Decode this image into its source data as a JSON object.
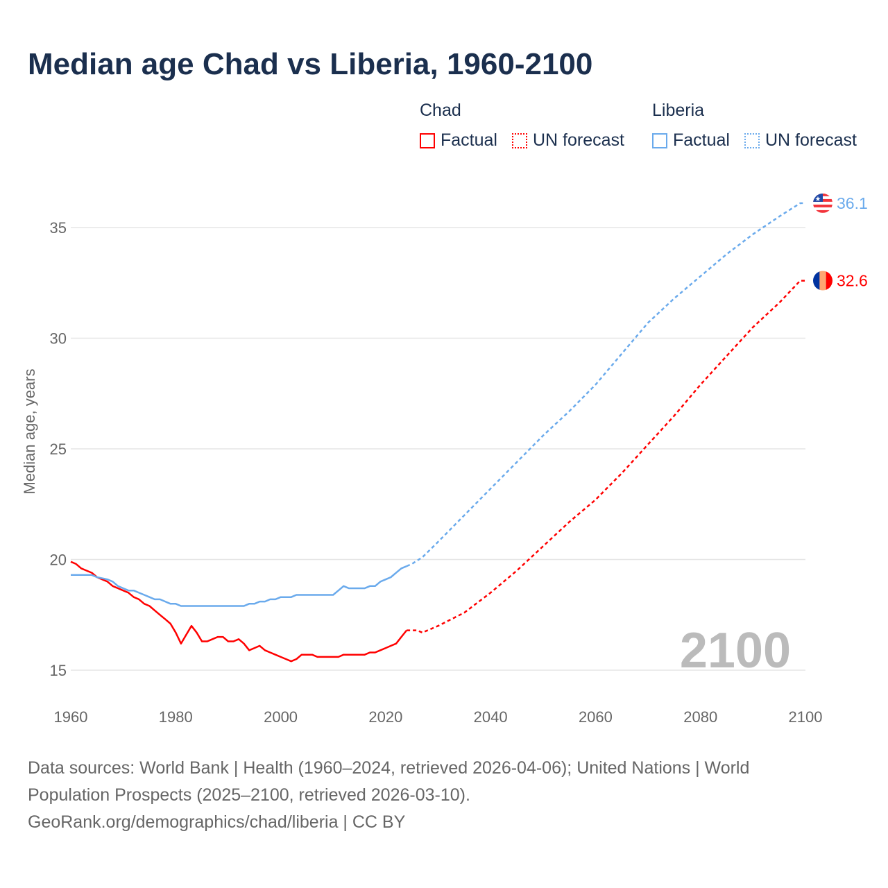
{
  "title": "Median age Chad vs Liberia, 1960-2100",
  "legend": {
    "groups": [
      {
        "name": "Chad",
        "factual": "Factual",
        "forecast": "UN forecast"
      },
      {
        "name": "Liberia",
        "factual": "Factual",
        "forecast": "UN forecast"
      }
    ]
  },
  "source": {
    "line1": "Data sources: World Bank | Health (1960–2024, retrieved 2026-04-06); United Nations | World Population Prospects (2025–2100, retrieved 2026-03-10).",
    "line2": "GeoRank.org/demographics/chad/liberia | CC BY"
  },
  "chart_data": {
    "type": "line",
    "title": "Median age Chad vs Liberia, 1960-2100",
    "xlabel": "",
    "ylabel": "Median age, years",
    "xlim": [
      1960,
      2100
    ],
    "ylim": [
      15,
      36.5
    ],
    "xticks": [
      1960,
      1980,
      2000,
      2020,
      2040,
      2060,
      2080,
      2100
    ],
    "yticks": [
      15,
      20,
      25,
      30,
      35
    ],
    "year_label": "2100",
    "grid": true,
    "series": [
      {
        "name": "Chad",
        "color": "#ff0000",
        "end_label": "32.6",
        "factual": {
          "x": [
            1960,
            1961,
            1962,
            1963,
            1964,
            1965,
            1966,
            1967,
            1968,
            1969,
            1970,
            1971,
            1972,
            1973,
            1974,
            1975,
            1976,
            1977,
            1978,
            1979,
            1980,
            1981,
            1982,
            1983,
            1984,
            1985,
            1986,
            1987,
            1988,
            1989,
            1990,
            1991,
            1992,
            1993,
            1994,
            1995,
            1996,
            1997,
            1998,
            1999,
            2000,
            2001,
            2002,
            2003,
            2004,
            2005,
            2006,
            2007,
            2008,
            2009,
            2010,
            2011,
            2012,
            2013,
            2014,
            2015,
            2016,
            2017,
            2018,
            2019,
            2020,
            2021,
            2022,
            2023,
            2024
          ],
          "y": [
            19.9,
            19.8,
            19.6,
            19.5,
            19.4,
            19.2,
            19.1,
            19.0,
            18.8,
            18.7,
            18.6,
            18.5,
            18.3,
            18.2,
            18.0,
            17.9,
            17.7,
            17.5,
            17.3,
            17.1,
            16.7,
            16.2,
            16.6,
            17.0,
            16.7,
            16.3,
            16.3,
            16.4,
            16.5,
            16.5,
            16.3,
            16.3,
            16.4,
            16.2,
            15.9,
            16.0,
            16.1,
            15.9,
            15.8,
            15.7,
            15.6,
            15.5,
            15.4,
            15.5,
            15.7,
            15.7,
            15.7,
            15.6,
            15.6,
            15.6,
            15.6,
            15.6,
            15.7,
            15.7,
            15.7,
            15.7,
            15.7,
            15.8,
            15.8,
            15.9,
            16.0,
            16.1,
            16.2,
            16.5,
            16.8
          ]
        },
        "forecast": {
          "x": [
            2024,
            2025,
            2026,
            2027,
            2030,
            2035,
            2040,
            2045,
            2050,
            2055,
            2060,
            2065,
            2070,
            2075,
            2080,
            2085,
            2090,
            2095,
            2099,
            2100
          ],
          "y": [
            16.8,
            16.8,
            16.8,
            16.7,
            17.0,
            17.6,
            18.5,
            19.5,
            20.6,
            21.7,
            22.7,
            23.9,
            25.2,
            26.5,
            27.9,
            29.2,
            30.5,
            31.6,
            32.6,
            32.6
          ]
        }
      },
      {
        "name": "Liberia",
        "color": "#6aaaec",
        "end_label": "36.1",
        "factual": {
          "x": [
            1960,
            1964,
            1965,
            1967,
            1968,
            1969,
            1970,
            1971,
            1972,
            1973,
            1974,
            1975,
            1976,
            1977,
            1978,
            1979,
            1980,
            1981,
            1993,
            1994,
            1995,
            1996,
            1997,
            1998,
            1999,
            2000,
            2002,
            2003,
            2010,
            2011,
            2012,
            2013,
            2016,
            2017,
            2018,
            2019,
            2020,
            2021,
            2022,
            2023,
            2024
          ],
          "y": [
            19.3,
            19.3,
            19.2,
            19.1,
            19.0,
            18.8,
            18.7,
            18.6,
            18.6,
            18.5,
            18.4,
            18.3,
            18.2,
            18.2,
            18.1,
            18.0,
            18.0,
            17.9,
            17.9,
            18.0,
            18.0,
            18.1,
            18.1,
            18.2,
            18.2,
            18.3,
            18.3,
            18.4,
            18.4,
            18.6,
            18.8,
            18.7,
            18.7,
            18.8,
            18.8,
            19.0,
            19.1,
            19.2,
            19.4,
            19.6,
            19.7
          ]
        },
        "forecast": {
          "x": [
            2024,
            2025,
            2027,
            2030,
            2035,
            2040,
            2045,
            2050,
            2055,
            2060,
            2065,
            2070,
            2075,
            2080,
            2085,
            2090,
            2095,
            2099,
            2100
          ],
          "y": [
            19.7,
            19.8,
            20.1,
            20.8,
            22.0,
            23.2,
            24.4,
            25.6,
            26.7,
            27.9,
            29.3,
            30.7,
            31.8,
            32.8,
            33.8,
            34.7,
            35.5,
            36.1,
            36.1
          ]
        }
      }
    ]
  }
}
